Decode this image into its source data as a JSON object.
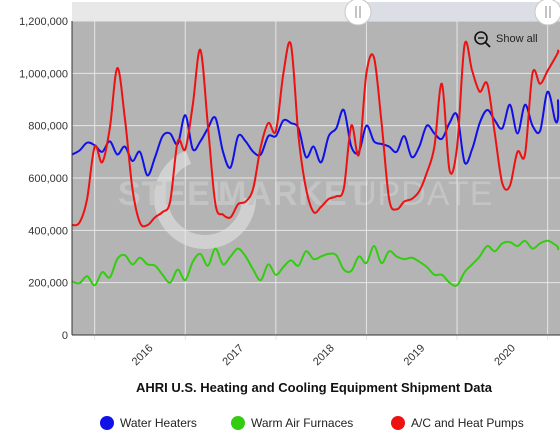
{
  "chart_data": {
    "type": "line",
    "title": "AHRI U.S. Heating and Cooling Equipment Shipment Data",
    "watermark": {
      "left": "STEEL",
      "mid": "MARKET",
      "right": "UPDATE"
    },
    "show_all_label": "Show all",
    "x_tick_labels": [
      "2016",
      "2017",
      "2018",
      "2019",
      "2020"
    ],
    "y_tick_labels": [
      "0",
      "200,000",
      "400,000",
      "600,000",
      "800,000",
      "1,000,000",
      "1,200,000"
    ],
    "ylim": [
      0,
      1200000
    ],
    "x": [
      "2015-10",
      "2015-11",
      "2015-12",
      "2016-01",
      "2016-02",
      "2016-03",
      "2016-04",
      "2016-05",
      "2016-06",
      "2016-07",
      "2016-08",
      "2016-09",
      "2016-10",
      "2016-11",
      "2016-12",
      "2017-01",
      "2017-02",
      "2017-03",
      "2017-04",
      "2017-05",
      "2017-06",
      "2017-07",
      "2017-08",
      "2017-09",
      "2017-10",
      "2017-11",
      "2017-12",
      "2018-01",
      "2018-02",
      "2018-03",
      "2018-04",
      "2018-05",
      "2018-06",
      "2018-07",
      "2018-08",
      "2018-09",
      "2018-10",
      "2018-11",
      "2018-12",
      "2019-01",
      "2019-02",
      "2019-03",
      "2019-04",
      "2019-05",
      "2019-06",
      "2019-07",
      "2019-08",
      "2019-09",
      "2019-10",
      "2019-11",
      "2019-12",
      "2020-01",
      "2020-02",
      "2020-03",
      "2020-04",
      "2020-05",
      "2020-06",
      "2020-07",
      "2020-08",
      "2020-09",
      "2020-10",
      "2020-11",
      "2020-12",
      "2021-01",
      "2021-02",
      "2021-03",
      "2021-04"
    ],
    "series": [
      {
        "name": "Water Heaters",
        "color": "#1010e8",
        "values": [
          690000,
          705000,
          735000,
          725000,
          700000,
          740000,
          690000,
          720000,
          665000,
          700000,
          610000,
          680000,
          760000,
          770000,
          730000,
          840000,
          710000,
          740000,
          790000,
          830000,
          700000,
          640000,
          760000,
          740000,
          700000,
          690000,
          760000,
          760000,
          820000,
          810000,
          790000,
          680000,
          720000,
          660000,
          760000,
          790000,
          860000,
          720000,
          700000,
          800000,
          740000,
          730000,
          720000,
          700000,
          760000,
          680000,
          720000,
          800000,
          770000,
          750000,
          810000,
          840000,
          660000,
          710000,
          810000,
          860000,
          820000,
          790000,
          880000,
          770000,
          880000,
          800000,
          780000,
          930000,
          820000,
          830000,
          900000
        ]
      },
      {
        "name": "Warm Air Furnaces",
        "color": "#33cc11",
        "values": [
          205000,
          198000,
          225000,
          190000,
          240000,
          220000,
          290000,
          305000,
          270000,
          295000,
          270000,
          265000,
          230000,
          200000,
          250000,
          210000,
          280000,
          310000,
          265000,
          330000,
          270000,
          300000,
          330000,
          300000,
          250000,
          210000,
          270000,
          230000,
          260000,
          285000,
          265000,
          320000,
          290000,
          300000,
          310000,
          305000,
          250000,
          245000,
          300000,
          275000,
          340000,
          275000,
          320000,
          300000,
          290000,
          295000,
          280000,
          260000,
          230000,
          230000,
          200000,
          190000,
          240000,
          270000,
          300000,
          340000,
          320000,
          350000,
          355000,
          340000,
          360000,
          330000,
          350000,
          360000,
          345000,
          335000,
          325000
        ]
      },
      {
        "name": "A/C and Heat Pumps",
        "color": "#ee1111",
        "values": [
          420000,
          430000,
          520000,
          720000,
          660000,
          790000,
          1020000,
          830000,
          560000,
          430000,
          420000,
          450000,
          470000,
          510000,
          740000,
          710000,
          880000,
          1090000,
          800000,
          500000,
          460000,
          450000,
          500000,
          510000,
          560000,
          720000,
          810000,
          780000,
          1000000,
          1110000,
          760000,
          560000,
          470000,
          490000,
          520000,
          530000,
          560000,
          800000,
          690000,
          1000000,
          1060000,
          810000,
          520000,
          480000,
          510000,
          520000,
          550000,
          620000,
          720000,
          960000,
          630000,
          720000,
          1110000,
          1010000,
          930000,
          960000,
          770000,
          580000,
          570000,
          700000,
          690000,
          1000000,
          960000,
          1010000,
          1060000,
          1080000,
          1090000
        ]
      }
    ]
  }
}
